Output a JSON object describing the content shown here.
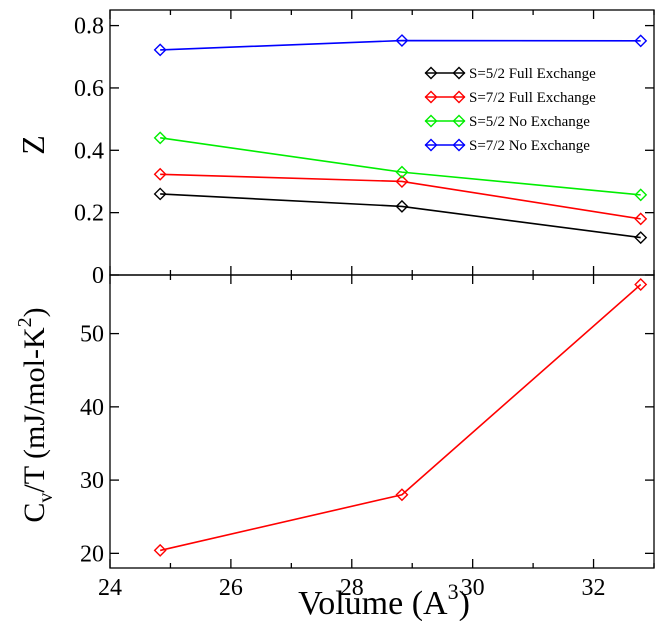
{
  "chart_data": [
    {
      "type": "line",
      "panel": "top",
      "x": [
        24.83,
        28.83,
        32.78
      ],
      "xlim": [
        24,
        33
      ],
      "ylim": [
        0,
        0.85
      ],
      "yticks": [
        0,
        0.2,
        0.4,
        0.6,
        0.8
      ],
      "yticklabels": [
        "0",
        "0.2",
        "0.4",
        "0.6",
        "0.8"
      ],
      "ylabel": "Z",
      "grid": false,
      "legend_position": "top-right",
      "series": [
        {
          "name": "S=5/2 Full Exchange",
          "color": "#000000",
          "values": [
            0.26,
            0.22,
            0.12
          ]
        },
        {
          "name": "S=7/2 Full Exchange",
          "color": "#ff0000",
          "values": [
            0.323,
            0.3,
            0.18
          ]
        },
        {
          "name": "S=5/2 No Exchange",
          "color": "#00ee00",
          "values": [
            0.44,
            0.33,
            0.257
          ]
        },
        {
          "name": "S=7/2 No Exchange",
          "color": "#0000ff",
          "values": [
            0.722,
            0.752,
            0.751
          ]
        }
      ]
    },
    {
      "type": "line",
      "panel": "bottom",
      "x": [
        24.83,
        28.83,
        32.78
      ],
      "xlim": [
        24,
        33
      ],
      "ylim": [
        18,
        58
      ],
      "yticks": [
        20,
        30,
        40,
        50
      ],
      "yticklabels": [
        "20",
        "30",
        "40",
        "50"
      ],
      "xticks": [
        24,
        26,
        28,
        30,
        32
      ],
      "xticklabels": [
        "24",
        "26",
        "28",
        "30",
        "32"
      ],
      "ylabel_main": "C",
      "ylabel_sub": "v",
      "ylabel_rest": "/T (mJ/mol-K",
      "ylabel_sup": "2",
      "ylabel_end": ")",
      "xlabel_main": "Volume (A",
      "xlabel_sup": "3",
      "xlabel_end": ")",
      "grid": false,
      "series": [
        {
          "color": "#ff0000",
          "values": [
            20.4,
            28.0,
            56.7
          ]
        }
      ]
    }
  ]
}
